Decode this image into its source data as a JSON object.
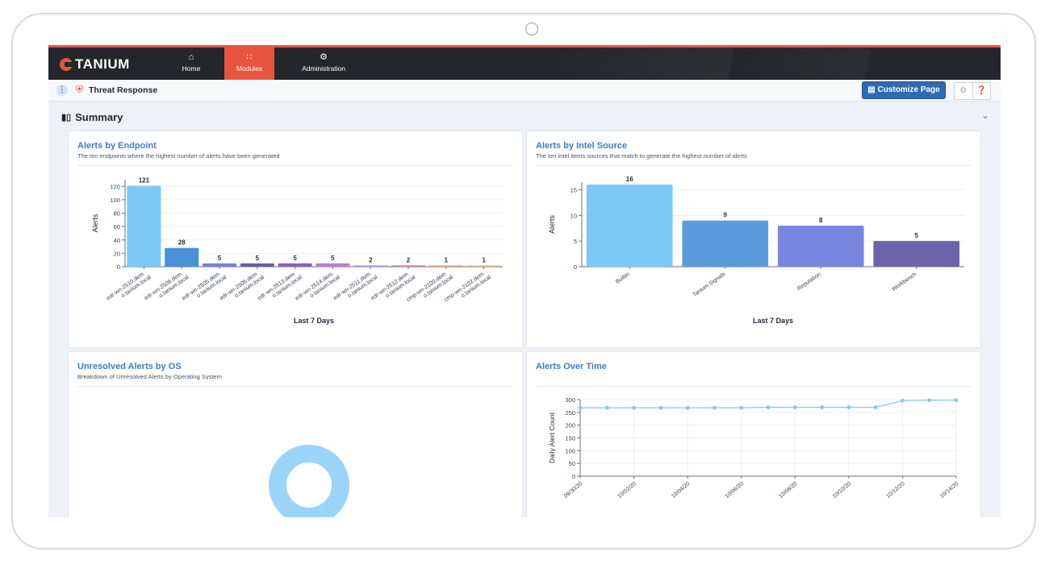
{
  "app": {
    "logo_text": "TANIUM",
    "nav": [
      {
        "label": "Home",
        "icon": "home-icon"
      },
      {
        "label": "Modules",
        "icon": "grid-icon",
        "active": true
      },
      {
        "label": "Administration",
        "icon": "gears-icon"
      }
    ],
    "module_title": "Threat Response",
    "customize_label": "Customize Page",
    "accent_color": "#e8553e",
    "link_color": "#3e7dc6"
  },
  "summary": {
    "title": "Summary"
  },
  "panels": {
    "endpoint": {
      "title": "Alerts by Endpoint",
      "subtitle": "The ten endpoints where the highest number of alerts have been generated",
      "xlabel": "Last 7 Days",
      "ylabel": "Alerts"
    },
    "intel": {
      "title": "Alerts by Intel Source",
      "subtitle": "The ten intel items sources that match to generate the highest number of alerts",
      "xlabel": "Last 7 Days",
      "ylabel": "Alerts"
    },
    "os": {
      "title": "Unresolved Alerts by OS",
      "subtitle": "Breakdown of Unresolved Alerts by Operating System"
    },
    "time": {
      "title": "Alerts Over Time",
      "ylabel": "Daily Alert Count"
    }
  },
  "chart_data": [
    {
      "type": "bar",
      "title": "Alerts by Endpoint",
      "xlabel": "Last 7 Days",
      "ylabel": "Alerts",
      "ylim": [
        0,
        130
      ],
      "yticks": [
        0,
        20,
        40,
        60,
        80,
        100,
        120
      ],
      "categories": [
        [
          "edr-wn-2510.dem",
          "o.tanium.local"
        ],
        [
          "edr-wn-2508.dem",
          "o.tanium.local"
        ],
        [
          "edr-wn-2505.dem",
          "o.tanium.local"
        ],
        [
          "edr-wn-2506.dem",
          "o.tanium.local"
        ],
        [
          "edr-wn-2513.dem",
          "o.tanium.local"
        ],
        [
          "edr-wn-2514.dem",
          "o.tanium.local"
        ],
        [
          "edr-wn-2511.dem",
          "o.tanium.local"
        ],
        [
          "edr-wn-2512.dem",
          "o.tanium.local"
        ],
        [
          "cmp-wn-2100.dem",
          "o.tanium.local"
        ],
        [
          "cmp-wn-2102.dem",
          "o.tanium.local"
        ]
      ],
      "values": [
        121,
        28,
        5,
        5,
        5,
        5,
        2,
        2,
        1,
        1
      ],
      "colors": [
        "#7ec8f8",
        "#4a90d9",
        "#7d7fdc",
        "#6a5fa8",
        "#8a62b6",
        "#b77fd0",
        "#c58fd8",
        "#c9829a",
        "#d8a47f",
        "#d8b47f"
      ],
      "grid": true
    },
    {
      "type": "bar",
      "title": "Alerts by Intel Source",
      "xlabel": "Last 7 Days",
      "ylabel": "Alerts",
      "ylim": [
        0,
        16.5
      ],
      "yticks": [
        0,
        5,
        10,
        15
      ],
      "categories": [
        "Builtin",
        "Tanium Signals",
        "Reputation",
        "Workbench"
      ],
      "values": [
        16,
        9,
        8,
        5
      ],
      "colors": [
        "#7ec8f8",
        "#5b9bdb",
        "#7a85e0",
        "#6e64ac"
      ],
      "grid": true
    },
    {
      "type": "pie",
      "title": "Unresolved Alerts by OS",
      "slices": [
        {
          "color": "#9bd4f9"
        }
      ]
    },
    {
      "type": "line",
      "title": "Alerts Over Time",
      "ylabel": "Daily Alert Count",
      "ylim": [
        0,
        300
      ],
      "yticks": [
        0,
        50,
        100,
        150,
        200,
        250,
        300
      ],
      "x": [
        "09/30/20",
        "10/01/20",
        "10/02/20",
        "10/03/20",
        "10/04/20",
        "10/05/20",
        "10/06/20",
        "10/07/20",
        "10/08/20",
        "10/09/20",
        "10/10/20",
        "10/11/20",
        "10/12/20",
        "10/13/20",
        "10/14/20"
      ],
      "xtick_labels": [
        "09/30/20",
        "10/02/20",
        "10/04/20",
        "10/06/20",
        "10/08/20",
        "10/10/20",
        "10/12/20",
        "10/14/20"
      ],
      "values": [
        268,
        268,
        268,
        268,
        268,
        268,
        268,
        270,
        270,
        270,
        270,
        270,
        296,
        298,
        298
      ],
      "color": "#7ec8f8",
      "grid": true
    }
  ]
}
